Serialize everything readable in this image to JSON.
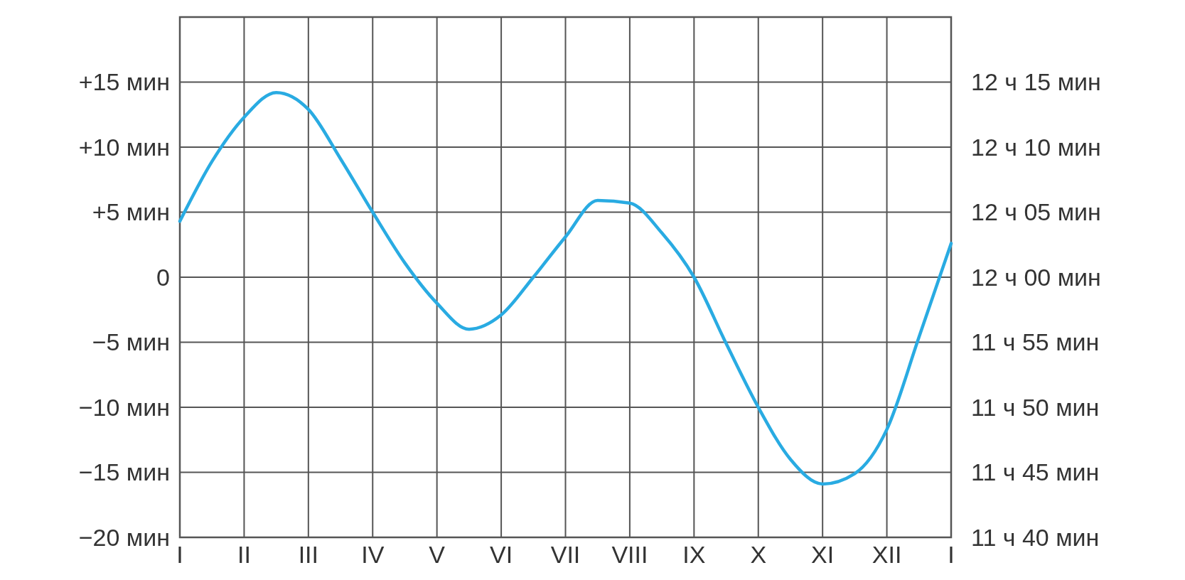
{
  "chart_data": {
    "type": "line",
    "ylim": [
      -20,
      20
    ],
    "categories": [
      "I",
      null,
      "II",
      null,
      "III",
      null,
      "IV",
      null,
      "V",
      null,
      "VI",
      null,
      "VII",
      null,
      "VIII",
      null,
      "IX",
      null,
      "X",
      null,
      "XI",
      null,
      "XII",
      null,
      "I"
    ],
    "yticks": [
      {
        "value": -20,
        "label": "−20 мин"
      },
      {
        "value": -15,
        "label": "−15 мин"
      },
      {
        "value": -10,
        "label": "−10 мин"
      },
      {
        "value": -5,
        "label": "−5 мин"
      },
      0,
      {
        "value": 5,
        "label": "+5 мин"
      },
      {
        "value": 10,
        "label": "+10 мин"
      },
      {
        "value": 15,
        "label": "+15 мин"
      }
    ],
    "annotations": [
      "11 ч 40 мин",
      "11 ч 45 мин",
      "11 ч 50 мин",
      "11 ч 55 мин",
      "12 ч 00 мин",
      "12 ч 05 мин",
      "12 ч 10 мин",
      "12 ч 15 мин"
    ],
    "grid": true,
    "line_style": "solid",
    "series": [
      {
        "color": "#29abe2",
        "values": [
          4.3,
          8.9,
          12.3,
          14.2,
          12.9,
          9.1,
          5.0,
          1.1,
          -2.0,
          -4.0,
          -2.9,
          0,
          3.1,
          5.9,
          5.7,
          3.4,
          0,
          -5.1,
          -10,
          -14,
          -15.9,
          -15.1,
          -11.7,
          -4.6,
          2.6
        ]
      }
    ]
  }
}
